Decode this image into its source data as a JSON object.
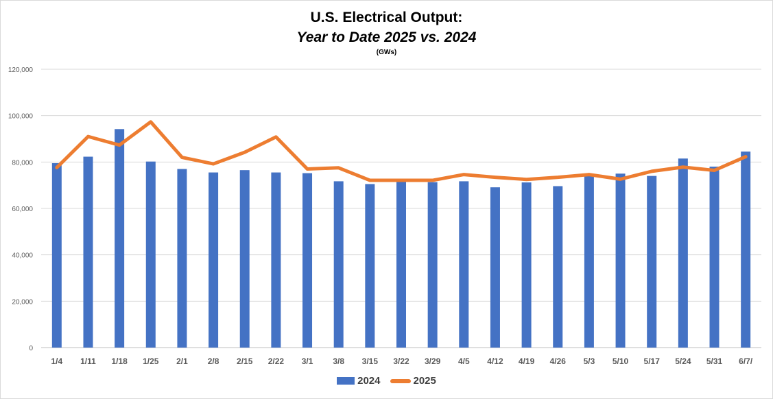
{
  "header": {
    "title": "U.S. Electrical Output:",
    "subtitle": "Year to Date 2025 vs. 2024",
    "unit": "(GWs)"
  },
  "colors": {
    "series_2024": "#4472c4",
    "series_2025": "#ed7d31",
    "gridline": "#d9d9d9",
    "axis_text": "#595959"
  },
  "chart_data": {
    "type": "bar",
    "title": "U.S. Electrical Output: Year to Date 2025 vs. 2024",
    "subtitle": "(GWs)",
    "xlabel": "",
    "ylabel": "",
    "ylim": [
      0,
      120000
    ],
    "yticks": [
      0,
      20000,
      40000,
      60000,
      80000,
      100000,
      120000
    ],
    "ytick_labels": [
      "0",
      "20,000",
      "40,000",
      "60,000",
      "80,000",
      "100,000",
      "120,000"
    ],
    "grid": true,
    "legend_position": "bottom",
    "categories": [
      "1/4",
      "1/11",
      "1/18",
      "1/25",
      "2/1",
      "2/8",
      "2/15",
      "2/22",
      "3/1",
      "3/8",
      "3/15",
      "3/22",
      "3/29",
      "4/5",
      "4/12",
      "4/19",
      "4/26",
      "5/3",
      "5/10",
      "5/17",
      "5/24",
      "5/31",
      "6/7/"
    ],
    "series": [
      {
        "name": "2024",
        "type": "bar",
        "values": [
          79500,
          82300,
          94200,
          80200,
          77000,
          75500,
          76500,
          75500,
          75200,
          71700,
          70500,
          71500,
          71300,
          71700,
          69100,
          71200,
          69600,
          74200,
          75000,
          74000,
          81500,
          78000,
          84500
        ]
      },
      {
        "name": "2025",
        "type": "line",
        "values": [
          77600,
          91000,
          87300,
          97300,
          82000,
          79200,
          84200,
          90800,
          77000,
          77500,
          72100,
          72100,
          72100,
          74600,
          73400,
          72500,
          73400,
          74600,
          72600,
          76000,
          77800,
          76400,
          82300
        ]
      }
    ]
  }
}
